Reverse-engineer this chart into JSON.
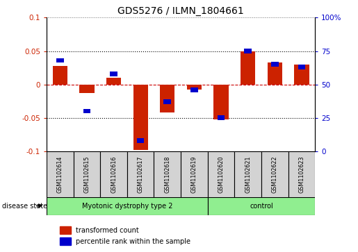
{
  "title": "GDS5276 / ILMN_1804661",
  "samples": [
    "GSM1102614",
    "GSM1102615",
    "GSM1102616",
    "GSM1102617",
    "GSM1102618",
    "GSM1102619",
    "GSM1102620",
    "GSM1102621",
    "GSM1102622",
    "GSM1102623"
  ],
  "red_values": [
    0.028,
    -0.013,
    0.01,
    -0.098,
    -0.042,
    -0.008,
    -0.052,
    0.05,
    0.033,
    0.03
  ],
  "blue_values_pct": [
    68,
    30,
    58,
    8,
    37,
    46,
    25,
    75,
    65,
    63
  ],
  "ylim_left": [
    -0.1,
    0.1
  ],
  "ylim_right": [
    0,
    100
  ],
  "yticks_left": [
    -0.1,
    -0.05,
    0.0,
    0.05,
    0.1
  ],
  "ytick_labels_left": [
    "-0.1",
    "-0.05",
    "0",
    "0.05",
    "0.1"
  ],
  "yticks_right": [
    0,
    25,
    50,
    75,
    100
  ],
  "ytick_labels_right": [
    "0",
    "25",
    "50",
    "75",
    "100%"
  ],
  "groups": [
    {
      "label": "Myotonic dystrophy type 2",
      "start": 0,
      "end": 6
    },
    {
      "label": "control",
      "start": 6,
      "end": 10
    }
  ],
  "disease_state_label": "disease state",
  "legend_red": "transformed count",
  "legend_blue": "percentile rank within the sample",
  "red_color": "#CC2200",
  "blue_color": "#0000CC",
  "bar_width": 0.55,
  "zero_line_color": "#CC0000",
  "tick_label_color_left": "#CC2200",
  "tick_label_color_right": "#0000CC",
  "sample_box_color": "#D3D3D3",
  "group_color": "#90EE90"
}
